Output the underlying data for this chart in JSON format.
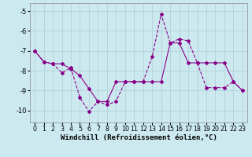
{
  "title": "",
  "xlabel": "Windchill (Refroidissement éolien,°C)",
  "ylabel": "",
  "background_color": "#cce9f0",
  "line_color": "#880088",
  "xlim": [
    -0.5,
    23.5
  ],
  "ylim": [
    -10.6,
    -4.6
  ],
  "yticks": [
    -10,
    -9,
    -8,
    -7,
    -6,
    -5
  ],
  "xticks": [
    0,
    1,
    2,
    3,
    4,
    5,
    6,
    7,
    8,
    9,
    10,
    11,
    12,
    13,
    14,
    15,
    16,
    17,
    18,
    19,
    20,
    21,
    22,
    23
  ],
  "line_dashed_x": [
    0,
    1,
    2,
    3,
    4,
    5,
    6,
    7,
    8,
    9,
    10,
    11,
    12,
    13,
    14,
    15,
    16,
    17,
    18,
    19,
    20,
    21,
    22,
    23
  ],
  "line_dashed_y": [
    -7.0,
    -7.55,
    -7.65,
    -8.1,
    -7.85,
    -9.35,
    -10.05,
    -9.55,
    -9.7,
    -9.55,
    -8.55,
    -8.55,
    -8.55,
    -7.3,
    -5.15,
    -6.6,
    -6.4,
    -6.5,
    -7.6,
    -8.85,
    -8.85,
    -8.85,
    -8.55,
    -9.0
  ],
  "line_solid_x": [
    0,
    1,
    2,
    3,
    4,
    5,
    6,
    7,
    8,
    9,
    10,
    11,
    12,
    13,
    14,
    15,
    16,
    17,
    18,
    19,
    20,
    21,
    22,
    23
  ],
  "line_solid_y": [
    -7.0,
    -7.55,
    -7.65,
    -7.65,
    -7.9,
    -8.25,
    -8.9,
    -9.55,
    -9.55,
    -8.55,
    -8.55,
    -8.55,
    -8.55,
    -8.55,
    -8.55,
    -6.6,
    -6.6,
    -7.6,
    -7.6,
    -7.6,
    -7.6,
    -7.6,
    -8.55,
    -9.0
  ],
  "xlabel_fontsize": 6.5,
  "tick_fontsize": 6,
  "grid_color": "#b0cdd5",
  "marker": "D",
  "marker_size": 2.0,
  "linewidth": 0.8
}
